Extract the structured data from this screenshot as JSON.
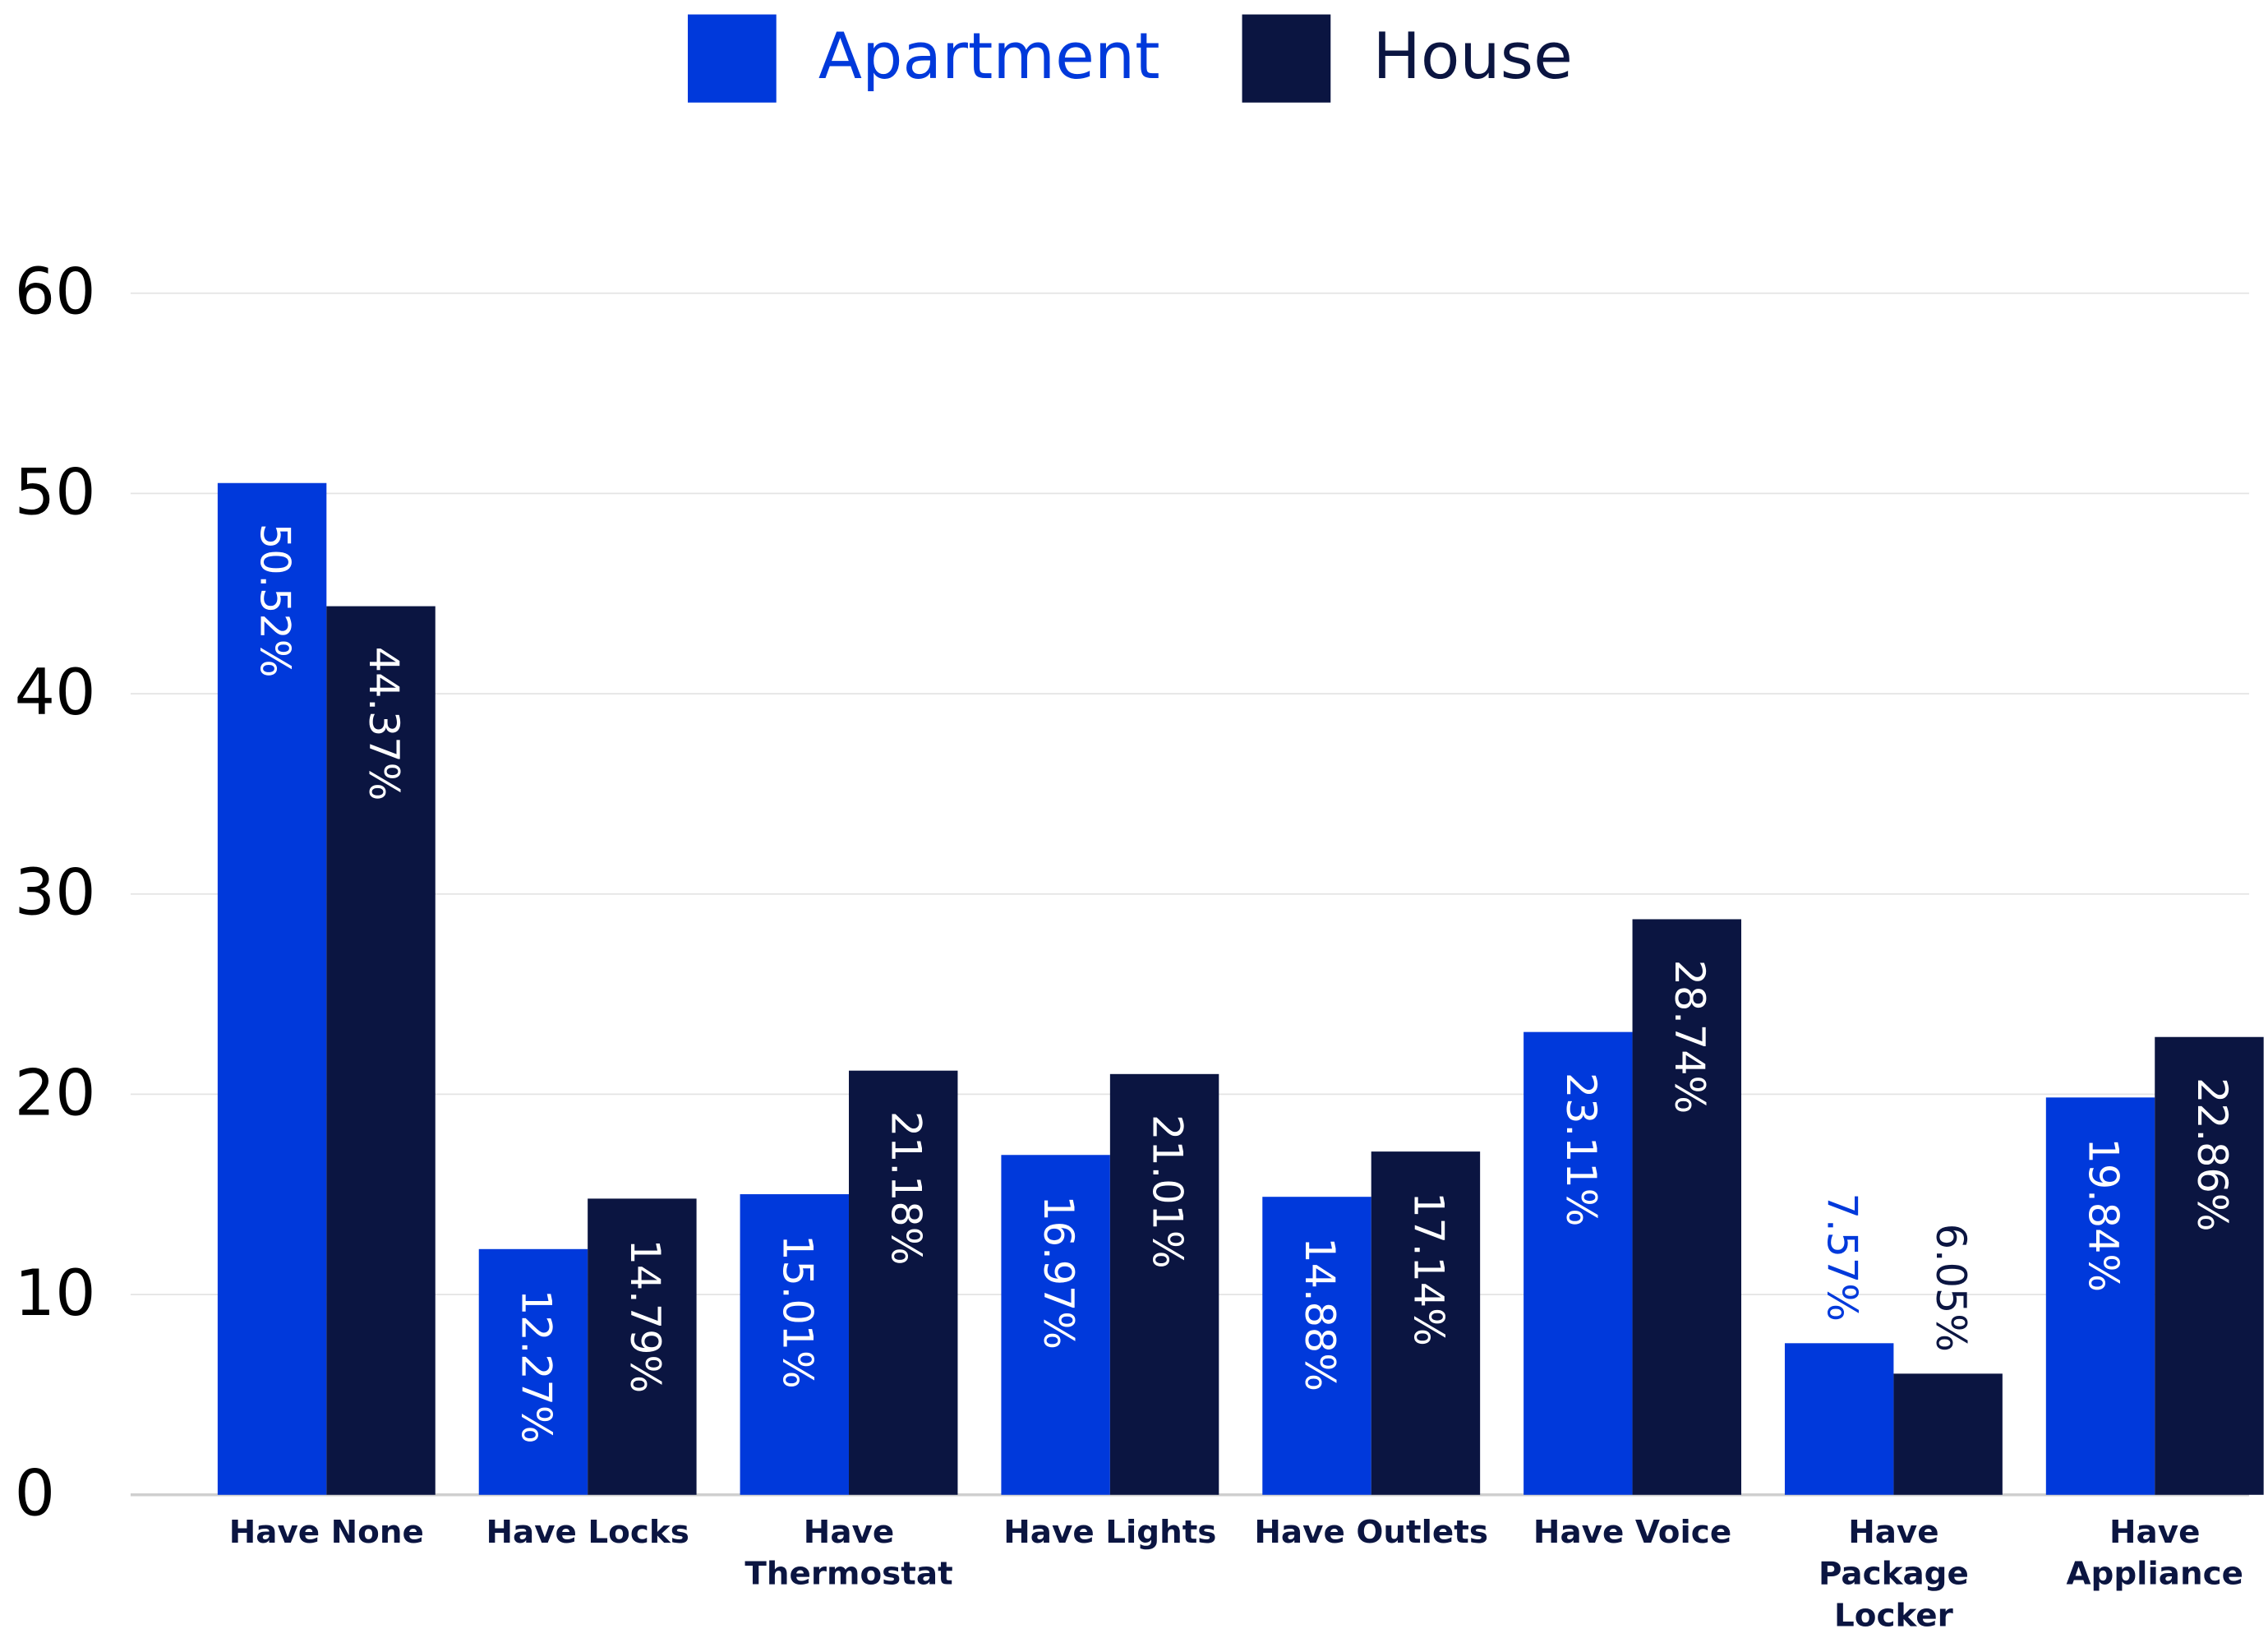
{
  "chart_data": {
    "type": "bar",
    "categories": [
      "Have None",
      "Have Locks",
      "Have\nThermostat",
      "Have Lights",
      "Have Outlets",
      "Have Voice",
      "Have\nPackage\nLocker",
      "Have\nAppliance"
    ],
    "series": [
      {
        "name": "Apartment",
        "color": "#0039db",
        "values": [
          50.52,
          12.27,
          15.01,
          16.97,
          14.88,
          23.11,
          7.57,
          19.84
        ],
        "value_labels": [
          "50.52%",
          "12.27%",
          "15.01%",
          "16.97%",
          "14.88%",
          "23.11%",
          "7.57%",
          "19.84%"
        ]
      },
      {
        "name": "House",
        "color": "#0b1541",
        "values": [
          44.37,
          14.79,
          21.18,
          21.01,
          17.14,
          28.74,
          6.05,
          22.86
        ],
        "value_labels": [
          "44.37%",
          "14.79%",
          "21.18%",
          "21.01%",
          "17.14%",
          "28.74%",
          "6.05%",
          "22.86%"
        ]
      }
    ],
    "ylim": [
      0,
      60
    ],
    "yticks": [
      0,
      10,
      20,
      30,
      40,
      50,
      60
    ],
    "grid": true,
    "legend": "top"
  }
}
